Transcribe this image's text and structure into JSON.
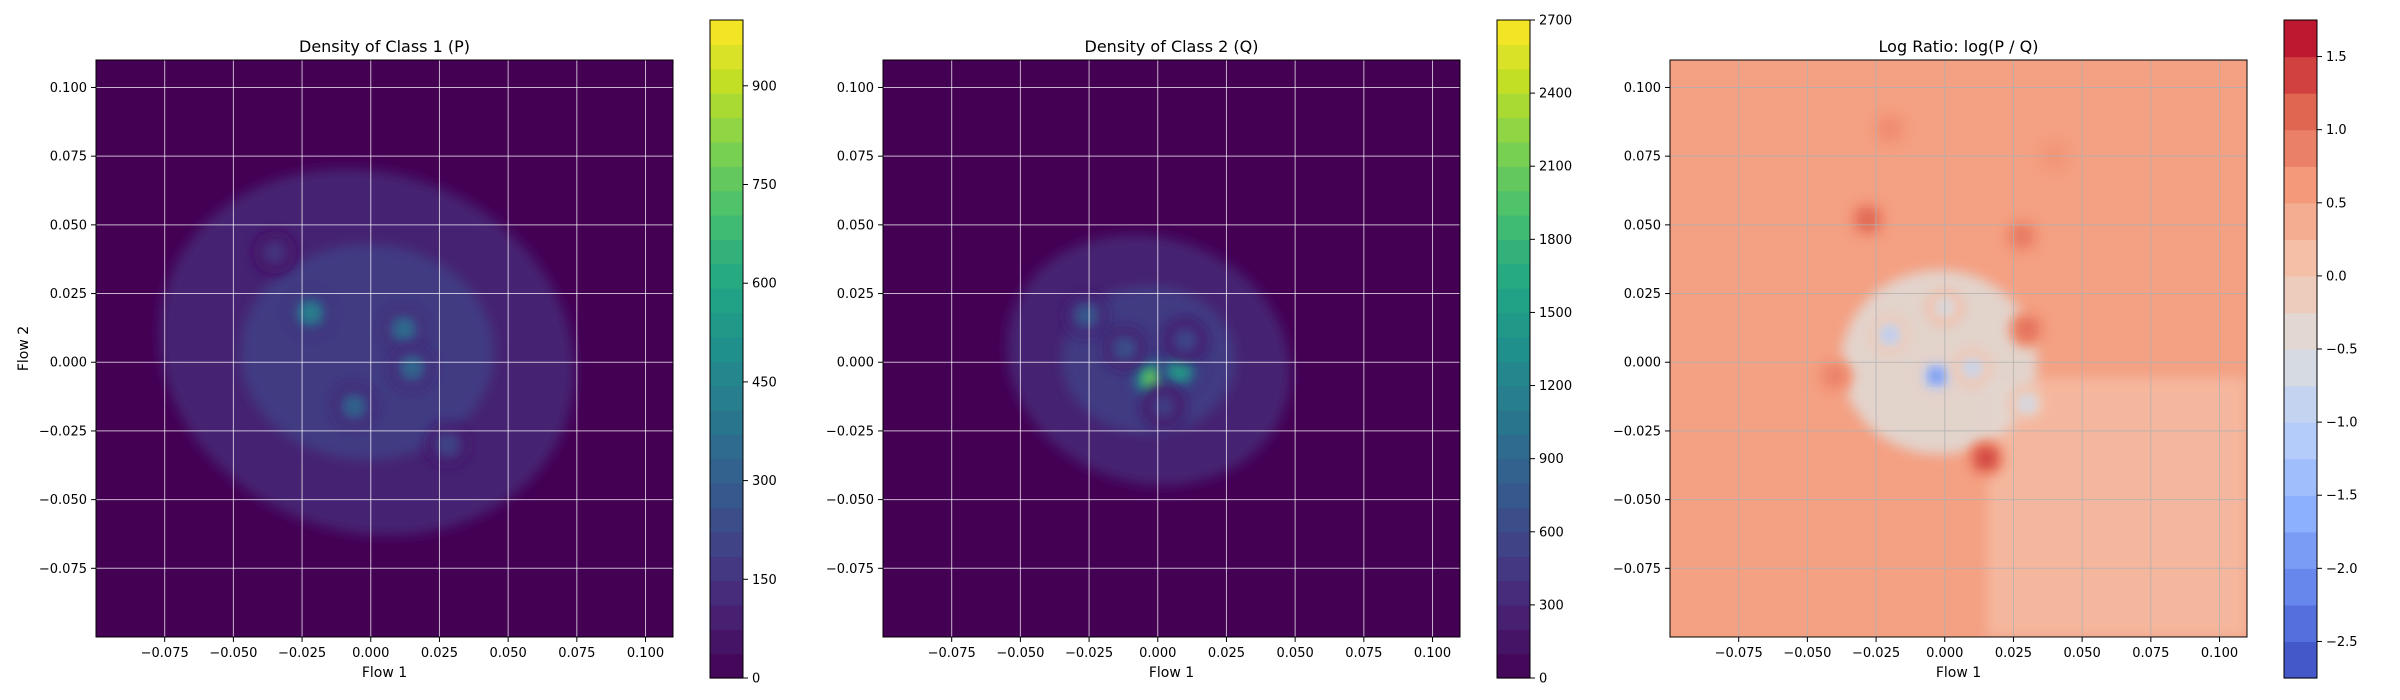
{
  "chart_data": [
    {
      "type": "heatmap",
      "title": "Density of Class 1 (P)",
      "xlabel": "Flow 1",
      "ylabel": "Flow 2",
      "xlim": [
        -0.1,
        0.11
      ],
      "ylim": [
        -0.1,
        0.11
      ],
      "x_ticks": [
        "−0.075",
        "−0.050",
        "−0.025",
        "0.000",
        "0.025",
        "0.050",
        "0.075",
        "0.100"
      ],
      "y_ticks": [
        "0.100",
        "0.075",
        "0.050",
        "0.025",
        "0.000",
        "−0.025",
        "−0.050",
        "−0.075"
      ],
      "colormap": "viridis",
      "colorbar": {
        "min": 0,
        "max": 1000,
        "ticks": [
          "0",
          "150",
          "300",
          "450",
          "600",
          "750",
          "900"
        ]
      },
      "grid": true,
      "hotspots": [
        {
          "x": -0.022,
          "y": 0.018,
          "value": 520
        },
        {
          "x": 0.012,
          "y": 0.012,
          "value": 420
        },
        {
          "x": 0.015,
          "y": -0.002,
          "value": 400
        },
        {
          "x": -0.006,
          "y": -0.016,
          "value": 380
        },
        {
          "x": 0.028,
          "y": -0.03,
          "value": 250
        },
        {
          "x": -0.035,
          "y": 0.04,
          "value": 180
        }
      ]
    },
    {
      "type": "heatmap",
      "title": "Density of Class 2 (Q)",
      "xlabel": "Flow 1",
      "ylabel": "",
      "xlim": [
        -0.1,
        0.11
      ],
      "ylim": [
        -0.1,
        0.11
      ],
      "x_ticks": [
        "−0.075",
        "−0.050",
        "−0.025",
        "0.000",
        "0.025",
        "0.050",
        "0.075",
        "0.100"
      ],
      "y_ticks": [
        "0.100",
        "0.075",
        "0.050",
        "0.025",
        "0.000",
        "−0.025",
        "−0.050",
        "−0.075"
      ],
      "colormap": "viridis",
      "colorbar": {
        "min": 0,
        "max": 2700,
        "ticks": [
          "0",
          "300",
          "600",
          "900",
          "1200",
          "1500",
          "1800",
          "2100",
          "2400",
          "2700"
        ]
      },
      "grid": true,
      "hotspots": [
        {
          "x": -0.002,
          "y": -0.006,
          "value": 2300
        },
        {
          "x": 0.008,
          "y": -0.003,
          "value": 1700
        },
        {
          "x": -0.026,
          "y": 0.017,
          "value": 900
        },
        {
          "x": -0.012,
          "y": 0.005,
          "value": 800
        },
        {
          "x": 0.01,
          "y": 0.008,
          "value": 700
        },
        {
          "x": 0.002,
          "y": -0.016,
          "value": 600
        }
      ]
    },
    {
      "type": "heatmap",
      "title": "Log Ratio: log(P / Q)",
      "xlabel": "Flow 1",
      "ylabel": "",
      "xlim": [
        -0.1,
        0.11
      ],
      "ylim": [
        -0.1,
        0.11
      ],
      "x_ticks": [
        "−0.075",
        "−0.050",
        "−0.025",
        "0.000",
        "0.025",
        "0.050",
        "0.075",
        "0.100"
      ],
      "y_ticks": [
        "0.100",
        "0.075",
        "0.050",
        "0.025",
        "0.000",
        "−0.025",
        "−0.050",
        "−0.075"
      ],
      "colormap": "coolwarm",
      "colorbar": {
        "min": -2.75,
        "max": 1.75,
        "ticks": [
          "−2.5",
          "−2.0",
          "−1.5",
          "−1.0",
          "−0.5",
          "0.0",
          "0.5",
          "1.0",
          "1.5"
        ]
      },
      "grid": true,
      "hotspots": [
        {
          "x": -0.003,
          "y": -0.005,
          "value": -2.3
        },
        {
          "x": -0.02,
          "y": 0.01,
          "value": -1.3
        },
        {
          "x": 0.01,
          "y": -0.002,
          "value": -1.1
        },
        {
          "x": 0.03,
          "y": -0.015,
          "value": -0.9
        },
        {
          "x": 0.0,
          "y": 0.02,
          "value": -0.8
        },
        {
          "x": 0.015,
          "y": -0.035,
          "value": 1.5
        },
        {
          "x": -0.028,
          "y": 0.052,
          "value": 1.2
        },
        {
          "x": 0.03,
          "y": 0.012,
          "value": 1.1
        },
        {
          "x": 0.028,
          "y": 0.046,
          "value": 1.0
        },
        {
          "x": -0.04,
          "y": -0.005,
          "value": 0.9
        },
        {
          "x": -0.02,
          "y": 0.085,
          "value": 0.8
        },
        {
          "x": 0.04,
          "y": 0.075,
          "value": 0.7
        }
      ]
    }
  ]
}
